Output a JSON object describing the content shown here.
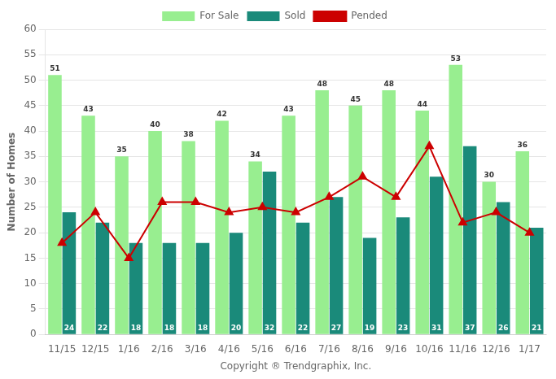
{
  "chart_data": {
    "type": "bar",
    "categories": [
      "11/15",
      "12/15",
      "1/16",
      "2/16",
      "3/16",
      "4/16",
      "5/16",
      "6/16",
      "7/16",
      "8/16",
      "9/16",
      "10/16",
      "11/16",
      "12/16",
      "1/17"
    ],
    "series": [
      {
        "name": "For Sale",
        "type": "bar",
        "color": "#98EE90",
        "data_labels": true,
        "values": [
          51,
          43,
          35,
          40,
          38,
          42,
          34,
          43,
          48,
          45,
          48,
          44,
          53,
          30,
          36
        ]
      },
      {
        "name": "Sold",
        "type": "bar",
        "color": "#1A8A7A",
        "data_labels": true,
        "values": [
          24,
          22,
          18,
          18,
          18,
          20,
          32,
          22,
          27,
          19,
          23,
          31,
          37,
          26,
          21
        ]
      },
      {
        "name": "Pended",
        "type": "line",
        "color": "#CC0000",
        "marker": "triangle",
        "values": [
          18,
          24,
          15,
          26,
          26,
          24,
          25,
          24,
          27,
          31,
          27,
          37,
          22,
          24,
          20
        ]
      }
    ],
    "ylabel": "Number of Homes",
    "xlabel": "Copyright ® Trendgraphix, Inc.",
    "ylim": [
      0,
      60
    ],
    "yticks": [
      0,
      5,
      10,
      15,
      20,
      25,
      30,
      35,
      40,
      45,
      50,
      55,
      60
    ],
    "grid": true,
    "legend": "top"
  }
}
